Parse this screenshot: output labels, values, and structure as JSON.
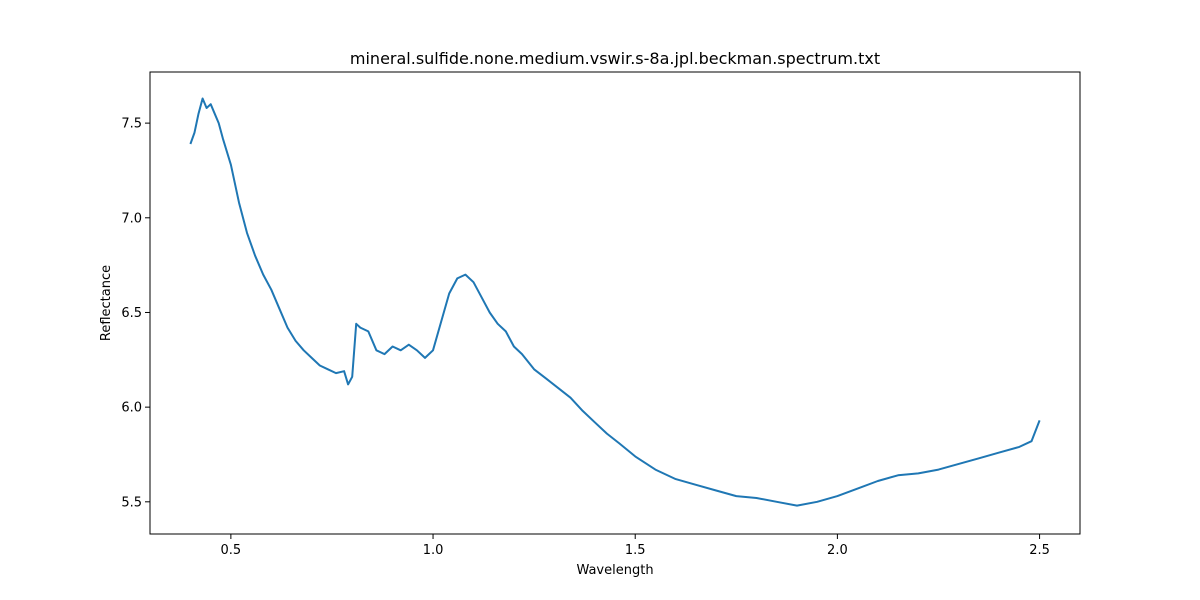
{
  "chart_data": {
    "type": "line",
    "title": "mineral.sulfide.none.medium.vswir.s-8a.jpl.beckman.spectrum.txt",
    "xlabel": "Wavelength",
    "ylabel": "Reflectance",
    "xlim": [
      0.3,
      2.6
    ],
    "ylim": [
      5.33,
      7.77
    ],
    "xticks": [
      0.5,
      1.0,
      1.5,
      2.0,
      2.5
    ],
    "xtick_labels": [
      "0.5",
      "1.0",
      "1.5",
      "2.0",
      "2.5"
    ],
    "yticks": [
      5.5,
      6.0,
      6.5,
      7.0,
      7.5
    ],
    "ytick_labels": [
      "5.5",
      "6.0",
      "6.5",
      "7.0",
      "7.5"
    ],
    "grid": false,
    "series": [
      {
        "color": "#1f77b4",
        "x": [
          0.4,
          0.41,
          0.42,
          0.43,
          0.44,
          0.45,
          0.46,
          0.47,
          0.48,
          0.5,
          0.52,
          0.54,
          0.56,
          0.58,
          0.6,
          0.62,
          0.64,
          0.66,
          0.68,
          0.7,
          0.72,
          0.74,
          0.76,
          0.78,
          0.79,
          0.8,
          0.81,
          0.82,
          0.84,
          0.86,
          0.88,
          0.9,
          0.92,
          0.94,
          0.96,
          0.98,
          1.0,
          1.02,
          1.04,
          1.06,
          1.08,
          1.1,
          1.12,
          1.14,
          1.16,
          1.18,
          1.2,
          1.22,
          1.25,
          1.28,
          1.31,
          1.34,
          1.37,
          1.4,
          1.43,
          1.46,
          1.5,
          1.55,
          1.6,
          1.65,
          1.7,
          1.75,
          1.8,
          1.85,
          1.9,
          1.95,
          2.0,
          2.05,
          2.1,
          2.15,
          2.2,
          2.25,
          2.3,
          2.35,
          2.4,
          2.45,
          2.48,
          2.5
        ],
        "y": [
          7.39,
          7.45,
          7.55,
          7.63,
          7.58,
          7.6,
          7.55,
          7.5,
          7.42,
          7.28,
          7.08,
          6.92,
          6.8,
          6.7,
          6.62,
          6.52,
          6.42,
          6.35,
          6.3,
          6.26,
          6.22,
          6.2,
          6.18,
          6.19,
          6.12,
          6.16,
          6.44,
          6.42,
          6.4,
          6.3,
          6.28,
          6.32,
          6.3,
          6.33,
          6.3,
          6.26,
          6.3,
          6.45,
          6.6,
          6.68,
          6.7,
          6.66,
          6.58,
          6.5,
          6.44,
          6.4,
          6.32,
          6.28,
          6.2,
          6.15,
          6.1,
          6.05,
          5.98,
          5.92,
          5.86,
          5.81,
          5.74,
          5.67,
          5.62,
          5.59,
          5.56,
          5.53,
          5.52,
          5.5,
          5.48,
          5.5,
          5.53,
          5.57,
          5.61,
          5.64,
          5.65,
          5.67,
          5.7,
          5.73,
          5.76,
          5.79,
          5.82,
          5.93
        ]
      }
    ]
  }
}
